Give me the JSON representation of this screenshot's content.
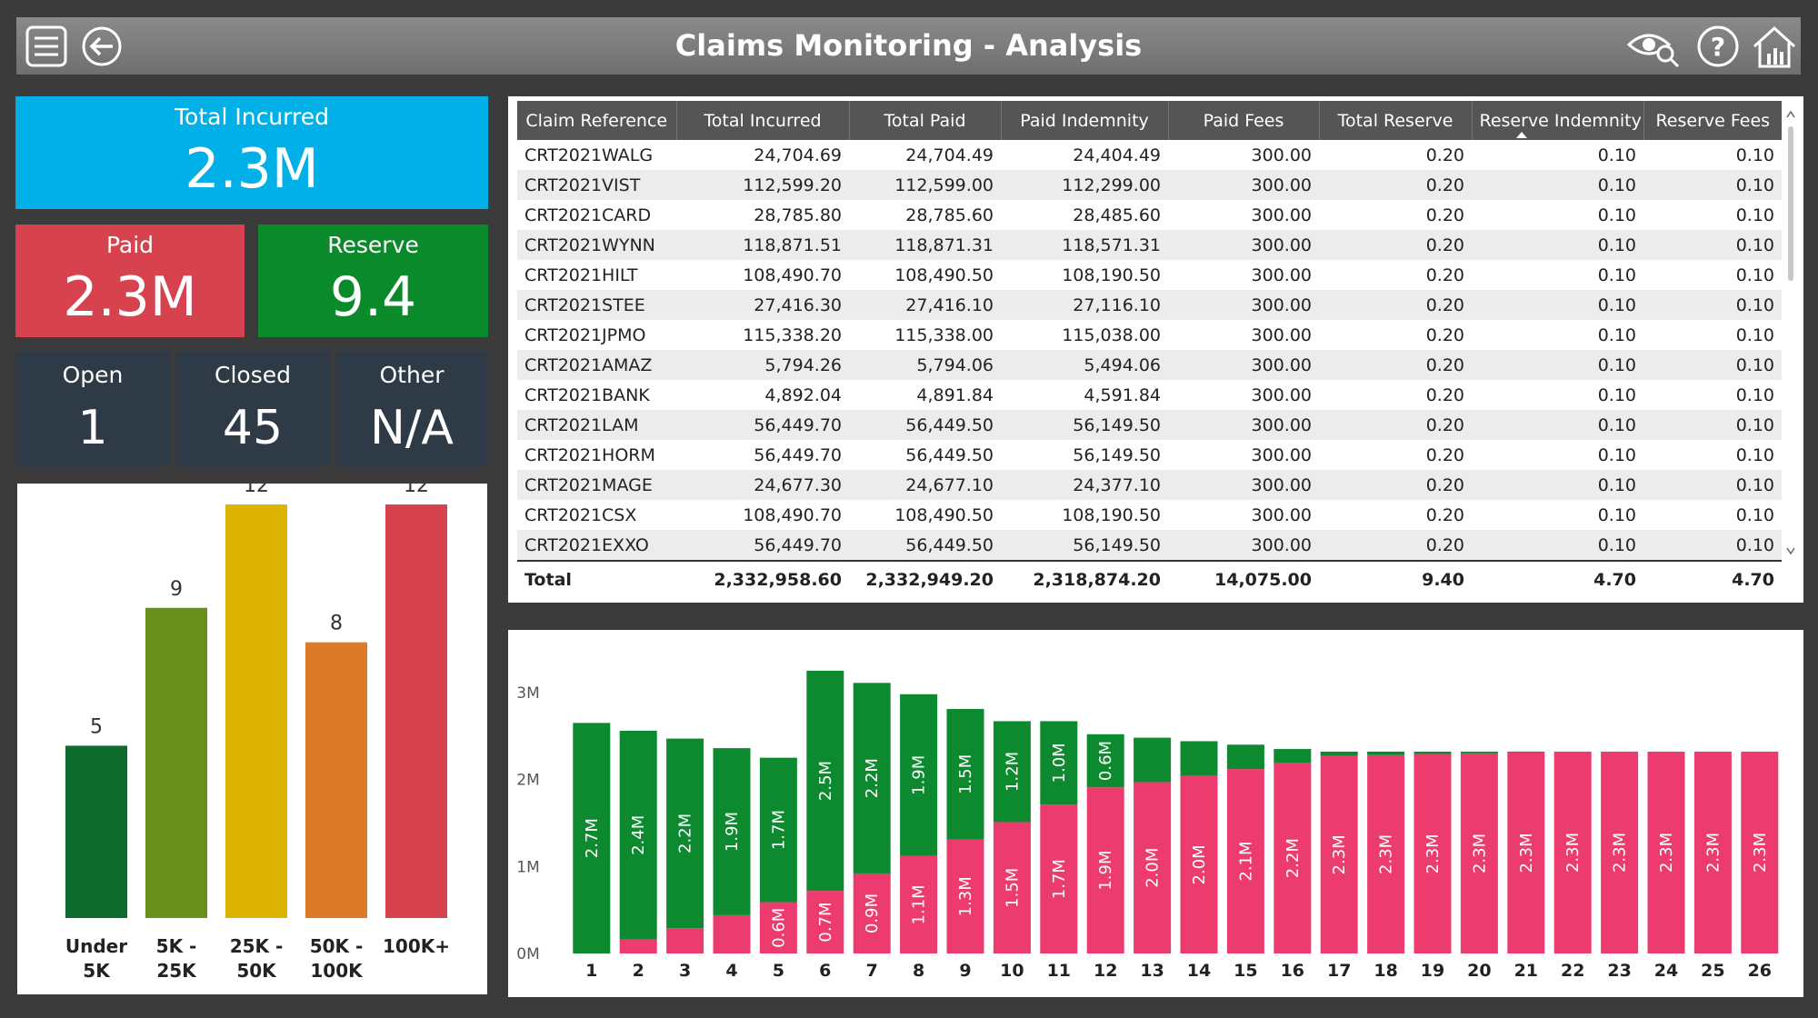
{
  "header": {
    "title": "Claims Monitoring - Analysis"
  },
  "kpis": [
    {
      "label": "Total Incurred",
      "value": "2.3M"
    },
    {
      "label": "Paid",
      "value": "2.3M"
    },
    {
      "label": "Reserve",
      "value": "9.4"
    },
    {
      "label": "Open",
      "value": "1"
    },
    {
      "label": "Closed",
      "value": "45"
    },
    {
      "label": "Other",
      "value": "N/A"
    }
  ],
  "table": {
    "columns": [
      "Claim Reference",
      "Total Incurred",
      "Total Paid",
      "Paid Indemnity",
      "Paid Fees",
      "Total Reserve",
      "Reserve Indemnity",
      "Reserve Fees"
    ],
    "rows": [
      [
        "CRT2021WALG",
        "24,704.69",
        "24,704.49",
        "24,404.49",
        "300.00",
        "0.20",
        "0.10",
        "0.10"
      ],
      [
        "CRT2021VIST",
        "112,599.20",
        "112,599.00",
        "112,299.00",
        "300.00",
        "0.20",
        "0.10",
        "0.10"
      ],
      [
        "CRT2021CARD",
        "28,785.80",
        "28,785.60",
        "28,485.60",
        "300.00",
        "0.20",
        "0.10",
        "0.10"
      ],
      [
        "CRT2021WYNN",
        "118,871.51",
        "118,871.31",
        "118,571.31",
        "300.00",
        "0.20",
        "0.10",
        "0.10"
      ],
      [
        "CRT2021HILT",
        "108,490.70",
        "108,490.50",
        "108,190.50",
        "300.00",
        "0.20",
        "0.10",
        "0.10"
      ],
      [
        "CRT2021STEE",
        "27,416.30",
        "27,416.10",
        "27,116.10",
        "300.00",
        "0.20",
        "0.10",
        "0.10"
      ],
      [
        "CRT2021JPMO",
        "115,338.20",
        "115,338.00",
        "115,038.00",
        "300.00",
        "0.20",
        "0.10",
        "0.10"
      ],
      [
        "CRT2021AMAZ",
        "5,794.26",
        "5,794.06",
        "5,494.06",
        "300.00",
        "0.20",
        "0.10",
        "0.10"
      ],
      [
        "CRT2021BANK",
        "4,892.04",
        "4,891.84",
        "4,591.84",
        "300.00",
        "0.20",
        "0.10",
        "0.10"
      ],
      [
        "CRT2021LAM",
        "56,449.70",
        "56,449.50",
        "56,149.50",
        "300.00",
        "0.20",
        "0.10",
        "0.10"
      ],
      [
        "CRT2021HORM",
        "56,449.70",
        "56,449.50",
        "56,149.50",
        "300.00",
        "0.20",
        "0.10",
        "0.10"
      ],
      [
        "CRT2021MAGE",
        "24,677.30",
        "24,677.10",
        "24,377.10",
        "300.00",
        "0.20",
        "0.10",
        "0.10"
      ],
      [
        "CRT2021CSX",
        "108,490.70",
        "108,490.50",
        "108,190.50",
        "300.00",
        "0.20",
        "0.10",
        "0.10"
      ],
      [
        "CRT2021EXXO",
        "56,449.70",
        "56,449.50",
        "56,149.50",
        "300.00",
        "0.20",
        "0.10",
        "0.10"
      ]
    ],
    "total": [
      "Total",
      "2,332,958.60",
      "2,332,949.20",
      "2,318,874.20",
      "14,075.00",
      "9.40",
      "4.70",
      "4.70"
    ]
  },
  "chart_data": [
    {
      "type": "bar",
      "categories": [
        "Under 5K",
        "5K - 25K",
        "25K - 50K",
        "50K - 100K",
        "100K+"
      ],
      "values": [
        5,
        9,
        12,
        8,
        12
      ],
      "colors": [
        "#0e6b2e",
        "#6a8f1b",
        "#dbb300",
        "#dc7a2a",
        "#d6434f"
      ],
      "ylim": [
        0,
        12
      ]
    },
    {
      "type": "stacked_bar",
      "categories": [
        "1",
        "2",
        "3",
        "4",
        "5",
        "6",
        "7",
        "8",
        "9",
        "10",
        "11",
        "12",
        "13",
        "14",
        "15",
        "16",
        "17",
        "18",
        "19",
        "20",
        "21",
        "22",
        "23",
        "24",
        "25",
        "26"
      ],
      "series": [
        {
          "color": "#ec3b6e",
          "values": [
            0,
            0.16,
            0.29,
            0.44,
            0.59,
            0.72,
            0.92,
            1.12,
            1.31,
            1.51,
            1.71,
            1.91,
            1.97,
            2.04,
            2.12,
            2.19,
            2.27,
            2.28,
            2.29,
            2.3,
            2.31,
            2.32,
            2.32,
            2.32,
            2.32,
            2.32
          ],
          "value_labels": [
            null,
            null,
            null,
            null,
            "0.6M",
            "0.7M",
            "0.9M",
            "1.1M",
            "1.3M",
            "1.5M",
            "1.7M",
            "1.9M",
            "2.0M",
            "2.0M",
            "2.1M",
            "2.2M",
            "2.3M",
            "2.3M",
            "2.3M",
            "2.3M",
            "2.3M",
            "2.3M",
            "2.3M",
            "2.3M",
            "2.3M",
            "2.3M"
          ]
        },
        {
          "color": "#0d8a2f",
          "values": [
            2.65,
            2.4,
            2.18,
            1.92,
            1.66,
            2.53,
            2.19,
            1.86,
            1.5,
            1.16,
            0.96,
            0.61,
            0.51,
            0.4,
            0.28,
            0.16,
            0.05,
            0.04,
            0.03,
            0.02,
            0.01,
            0,
            0,
            0,
            0,
            0
          ],
          "value_labels": [
            "2.7M",
            "2.4M",
            "2.2M",
            "1.9M",
            "1.7M",
            "2.5M",
            "2.2M",
            "1.9M",
            "1.5M",
            "1.2M",
            "1.0M",
            "0.6M",
            null,
            null,
            null,
            null,
            null,
            null,
            null,
            null,
            null,
            null,
            null,
            null,
            null,
            null
          ]
        }
      ],
      "ylim": [
        0,
        3.5
      ],
      "yticks": [
        {
          "value": 0,
          "label": "0M"
        },
        {
          "value": 1,
          "label": "1M"
        },
        {
          "value": 2,
          "label": "2M"
        },
        {
          "value": 3,
          "label": "3M"
        }
      ]
    }
  ]
}
